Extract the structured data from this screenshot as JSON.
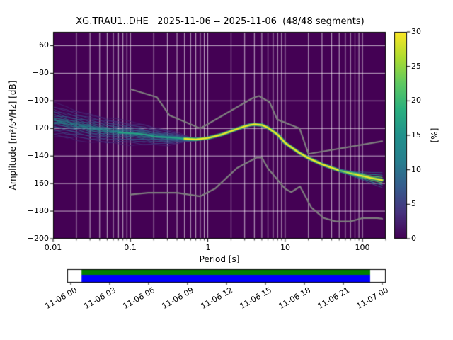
{
  "chart_data": {
    "type": "heatmap",
    "title": "XG.TRAU1..DHE   2025-11-06 -- 2025-11-06  (48/48 segments)",
    "station_id": "XG.TRAU1..DHE",
    "date_range": "2025-11-06 -- 2025-11-06",
    "segments_used": 48,
    "segments_total": 48,
    "xlabel": "Period [s]",
    "ylabel": "Amplitude [m²/s⁴/Hz] [dB]",
    "xscale": "log",
    "xlim": [
      0.01,
      200
    ],
    "ylim": [
      -200,
      -50
    ],
    "grid": true,
    "background_color": "#440154",
    "grid_color": "#ffffff",
    "x_ticks": {
      "values": [
        0.01,
        0.1,
        1,
        10,
        100
      ],
      "labels": [
        "0.01",
        "0.1",
        "1",
        "10",
        "100"
      ]
    },
    "y_ticks": {
      "values": [
        -60,
        -80,
        -100,
        -120,
        -140,
        -160,
        -180,
        -200
      ],
      "labels": [
        "−60",
        "−80",
        "−100",
        "−120",
        "−140",
        "−160",
        "−180",
        "−200"
      ]
    },
    "colorbar": {
      "label": "[%]",
      "range": [
        0,
        30
      ],
      "ticks": {
        "values": [
          0,
          5,
          10,
          15,
          20,
          25,
          30
        ],
        "labels": [
          "0",
          "5",
          "10",
          "15",
          "20",
          "25",
          "30"
        ]
      },
      "colormap": "viridis",
      "colormap_stops": [
        [
          0,
          "#440154"
        ],
        [
          0.125,
          "#46327e"
        ],
        [
          0.25,
          "#365c8d"
        ],
        [
          0.375,
          "#277f8e"
        ],
        [
          0.5,
          "#21918c"
        ],
        [
          0.625,
          "#2ab07f"
        ],
        [
          0.75,
          "#5ec962"
        ],
        [
          0.875,
          "#addc30"
        ],
        [
          1,
          "#fde725"
        ]
      ]
    },
    "psd_mode": {
      "comment_color": "#fde725",
      "color": "#fde725",
      "periods": [
        0.5,
        0.7,
        1,
        1.5,
        2,
        2.5,
        3,
        3.5,
        4,
        5,
        6,
        8,
        10,
        15,
        20,
        30,
        50,
        70,
        100,
        130,
        180
      ],
      "db": [
        -127.5,
        -128,
        -127,
        -124.5,
        -122,
        -120,
        -118.5,
        -117.5,
        -117,
        -117.5,
        -119.5,
        -124.5,
        -130.5,
        -137.5,
        -141.5,
        -146,
        -150.5,
        -152.5,
        -154.5,
        -156,
        -157.5
      ]
    },
    "psd_band": {
      "n_lines": 25,
      "periods": [
        0.01,
        0.015,
        0.02,
        0.03,
        0.05,
        0.07,
        0.1,
        0.15,
        0.2,
        0.3,
        0.4,
        0.5,
        0.6,
        0.75
      ],
      "center_db": [
        -114,
        -116,
        -117.5,
        -119.5,
        -121.5,
        -122.5,
        -123.5,
        -124.5,
        -125.5,
        -126.5,
        -127,
        -127.5,
        -128,
        -128
      ],
      "spread_db": [
        12,
        11,
        10.5,
        10,
        9,
        8.5,
        8,
        7.5,
        6.5,
        5.5,
        4,
        2.5,
        1.5,
        0.8
      ]
    },
    "noise_models": {
      "color": "#7f7f7f",
      "nhnm": {
        "periods": [
          0.1,
          0.22,
          0.32,
          0.8,
          3.8,
          4.6,
          6.3,
          7.9,
          15.4,
          20,
          180
        ],
        "db": [
          -91.5,
          -97.4,
          -110.5,
          -120,
          -98,
          -96.5,
          -101,
          -113.5,
          -120,
          -138.5,
          -129.3
        ]
      },
      "nlnm": {
        "periods": [
          0.1,
          0.17,
          0.4,
          0.8,
          1.24,
          2.4,
          4.3,
          5,
          6,
          10,
          12,
          15.6,
          21.9,
          31.6,
          45,
          70,
          101,
          154,
          180
        ],
        "db": [
          -168,
          -166.7,
          -166.7,
          -169.2,
          -163.7,
          -148.6,
          -141.1,
          -141.1,
          -149,
          -163.8,
          -166.2,
          -162.1,
          -177.5,
          -185,
          -187.5,
          -187.5,
          -185,
          -185,
          -185.5
        ]
      }
    },
    "timeline": {
      "tick_labels": [
        "11-06 00",
        "11-06 03",
        "11-06 06",
        "11-06 09",
        "11-06 12",
        "11-06 15",
        "11-06 18",
        "11-06 21",
        "11-07 00"
      ],
      "coverage_color": "#008000",
      "data_color": "#0000ff",
      "coverage_start_frac": 0.045,
      "coverage_end_frac": 0.951
    }
  }
}
